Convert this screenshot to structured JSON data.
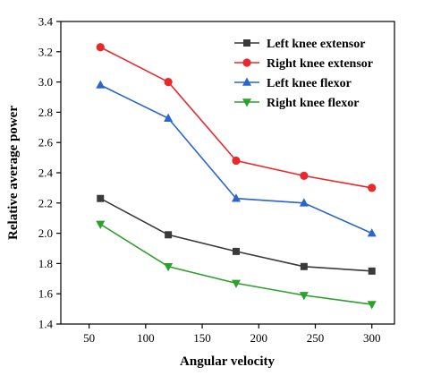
{
  "chart_data": {
    "type": "line",
    "xlabel": "Angular velocity",
    "ylabel": "Relative average power",
    "xlim": [
      25,
      320
    ],
    "ylim": [
      1.4,
      3.4
    ],
    "xticks": [
      50,
      100,
      150,
      200,
      250,
      300
    ],
    "yticks": [
      1.4,
      1.6,
      1.8,
      2.0,
      2.2,
      2.4,
      2.6,
      2.8,
      3.0,
      3.2,
      3.4
    ],
    "grid": false,
    "legend_position": "top-right",
    "x": [
      60,
      120,
      180,
      240,
      300
    ],
    "series": [
      {
        "name": "Left knee extensor",
        "values": [
          2.23,
          1.99,
          1.88,
          1.78,
          1.75
        ],
        "color": "#3a3a3a",
        "marker": "square"
      },
      {
        "name": "Right knee extensor",
        "values": [
          3.23,
          3.0,
          2.48,
          2.38,
          2.3
        ],
        "color": "#e8282a",
        "marker": "circle"
      },
      {
        "name": "Left knee flexor",
        "values": [
          2.98,
          2.76,
          2.23,
          2.2,
          2.0
        ],
        "color": "#2a66c9",
        "marker": "triangle-up"
      },
      {
        "name": "Right knee flexor",
        "values": [
          2.06,
          1.78,
          1.67,
          1.59,
          1.53
        ],
        "color": "#2ca02c",
        "marker": "triangle-down"
      }
    ]
  }
}
